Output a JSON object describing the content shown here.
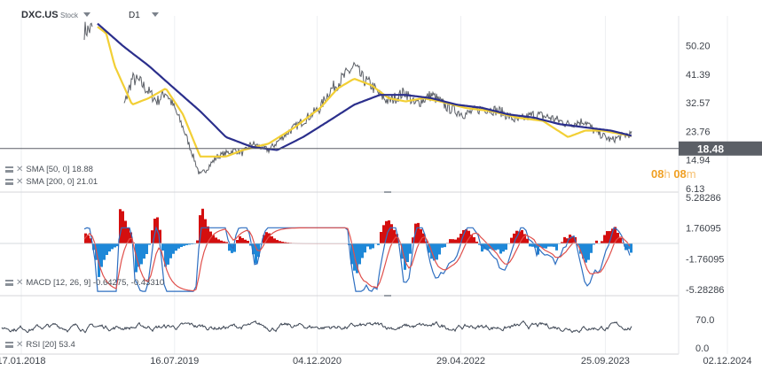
{
  "header": {
    "symbol": "DXC.US",
    "kind": "Stock",
    "timeframe": "D1"
  },
  "indicators": {
    "sma50": "SMA [50, 0] 18.88",
    "sma200": "SMA [200, 0] 21.01",
    "macd": "MACD [12, 26, 9] -0.64275, -0.43310",
    "rsi": "RSI [20] 53.4"
  },
  "countdown": {
    "hours": "08",
    "h": "h",
    "minutes": "08",
    "m": "m"
  },
  "colors": {
    "price": "#5b5f66",
    "sma50": "#f2cf35",
    "sma200": "#2b2f8c",
    "macd_pos": "#d40f0f",
    "macd_neg": "#1e88d8",
    "macd_line": "#2e6fc1",
    "signal_line": "#e0504c",
    "rsi": "#3b4452",
    "last_price_bg": "#5b5f66"
  },
  "chart_data": [
    {
      "type": "line",
      "title": "DXC.US",
      "ylim": [
        6.13,
        58
      ],
      "price_ticks": [
        "50.20",
        "41.39",
        "32.57",
        "23.76",
        "14.94",
        "6.13"
      ],
      "x_ticks": [
        "17.01.2018",
        "16.07.2019",
        "04.12.2020",
        "29.04.2022",
        "25.09.2023",
        "02.12.2024"
      ],
      "last_price": "18.48",
      "series": [
        {
          "name": "price",
          "x": [
            "2018-01",
            "2018-02",
            "2018-03",
            "2018-05",
            "2018-07",
            "2018-09",
            "2018-10",
            "2018-11",
            "2018-12",
            "2019-01",
            "2019-02",
            "2019-03",
            "2019-05",
            "2019-06",
            "2019-07",
            "2019-08",
            "2019-10",
            "2019-12",
            "2020-02",
            "2020-03",
            "2020-04",
            "2020-06",
            "2020-08",
            "2020-10",
            "2020-12",
            "2021-01",
            "2021-03",
            "2021-04",
            "2021-05",
            "2021-06",
            "2021-07",
            "2021-08",
            "2021-10",
            "2021-11",
            "2022-01",
            "2022-03",
            "2022-05",
            "2022-07",
            "2022-09",
            "2022-11",
            "2023-01",
            "2023-03",
            "2023-05",
            "2023-07",
            "2023-08",
            "2023-10",
            "2023-12",
            "2024-01",
            "2024-02",
            "2024-03"
          ],
          "values": [
            55,
            55,
            55,
            55,
            55,
            55,
            57,
            54,
            38,
            31,
            40,
            39,
            33,
            36,
            31,
            25,
            10,
            16,
            18,
            17,
            20,
            18,
            23,
            27,
            31,
            36,
            41,
            44,
            40,
            38,
            35,
            33,
            36,
            32,
            35,
            31,
            29,
            31,
            30,
            27,
            29,
            28,
            26,
            27,
            24,
            21,
            23,
            22,
            21,
            18.48
          ]
        },
        {
          "name": "SMA 50",
          "x": [
            "2018-10",
            "2018-11",
            "2018-12",
            "2019-02",
            "2019-04",
            "2019-06",
            "2019-08",
            "2019-10",
            "2020-01",
            "2020-03",
            "2020-06",
            "2020-09",
            "2020-12",
            "2021-02",
            "2021-04",
            "2021-06",
            "2021-08",
            "2021-10",
            "2021-12",
            "2022-02",
            "2022-05",
            "2022-08",
            "2022-11",
            "2023-02",
            "2023-05",
            "2023-07",
            "2023-09",
            "2023-11",
            "2024-01",
            "2024-03"
          ],
          "values": [
            56,
            54,
            44,
            32,
            34,
            37,
            29,
            16,
            16,
            18,
            20,
            25,
            31,
            37,
            40,
            38,
            34,
            33,
            34,
            33,
            31,
            30,
            28,
            27,
            22,
            24,
            24,
            23,
            22,
            18.88
          ]
        },
        {
          "name": "SMA 200",
          "x": [
            "2018-10",
            "2019-01",
            "2019-04",
            "2019-07",
            "2019-10",
            "2020-01",
            "2020-04",
            "2020-07",
            "2020-10",
            "2021-01",
            "2021-04",
            "2021-07",
            "2021-10",
            "2022-01",
            "2022-04",
            "2022-07",
            "2022-10",
            "2023-01",
            "2023-04",
            "2023-07",
            "2023-10",
            "2024-01",
            "2024-03"
          ],
          "values": [
            57,
            50,
            44,
            37,
            30,
            22,
            19,
            18,
            22,
            27,
            32,
            35,
            35,
            34,
            32,
            31,
            29,
            28,
            26,
            25,
            24,
            22,
            21.01
          ]
        }
      ]
    },
    {
      "type": "bar",
      "title": "MACD [12, 26, 9]",
      "ylim": [
        -5.28286,
        5.28286
      ],
      "y_ticks": [
        "5.28286",
        "1.76095",
        "-1.76095",
        "-5.28286"
      ],
      "macd_last": -0.64275,
      "signal_last": -0.4331
    },
    {
      "type": "line",
      "title": "RSI [20]",
      "ylim": [
        0,
        100
      ],
      "y_ticks": [
        "70.0",
        "0.0"
      ],
      "last": 53.4
    }
  ]
}
